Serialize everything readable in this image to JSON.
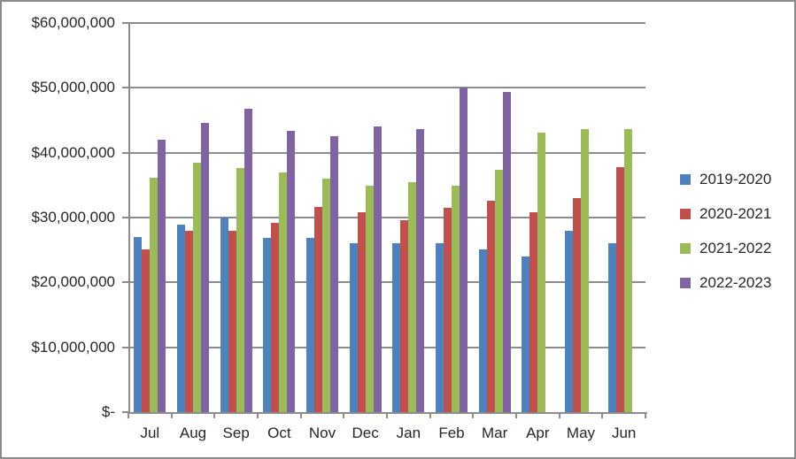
{
  "window": {
    "background": "#ffffff",
    "border_color": "#8b8b8b",
    "gridline_color": "#8c8c8c",
    "text_color": "#262626"
  },
  "chart_data": {
    "type": "bar",
    "title": "",
    "xlabel": "",
    "ylabel": "",
    "categories": [
      "Jul",
      "Aug",
      "Sep",
      "Oct",
      "Nov",
      "Dec",
      "Jan",
      "Feb",
      "Mar",
      "Apr",
      "May",
      "Jun"
    ],
    "series": [
      {
        "name": "2019-2020",
        "color": "#4F81BD",
        "values": [
          27000000,
          28900000,
          30000000,
          26900000,
          26800000,
          26000000,
          26000000,
          26000000,
          25100000,
          24000000,
          28000000,
          26100000
        ]
      },
      {
        "name": "2020-2021",
        "color": "#C0504D",
        "values": [
          25100000,
          27900000,
          28000000,
          29200000,
          31700000,
          30800000,
          29600000,
          31500000,
          32600000,
          30800000,
          33000000,
          37800000
        ]
      },
      {
        "name": "2021-2022",
        "color": "#9BBB59",
        "values": [
          36200000,
          38500000,
          37600000,
          37000000,
          36000000,
          34900000,
          35400000,
          34900000,
          37400000,
          43100000,
          43600000,
          43700000
        ]
      },
      {
        "name": "2022-2023",
        "color": "#8064A2",
        "values": [
          42000000,
          44600000,
          46800000,
          43400000,
          42500000,
          44000000,
          43600000,
          50000000,
          49300000,
          null,
          null,
          null
        ]
      }
    ],
    "ylim": [
      0,
      60000000
    ],
    "ytick_interval": 10000000,
    "ytick_labels": [
      "$-",
      "$10,000,000",
      "$20,000,000",
      "$30,000,000",
      "$40,000,000",
      "$50,000,000",
      "$60,000,000"
    ],
    "grid": true,
    "legend_position": "right"
  }
}
